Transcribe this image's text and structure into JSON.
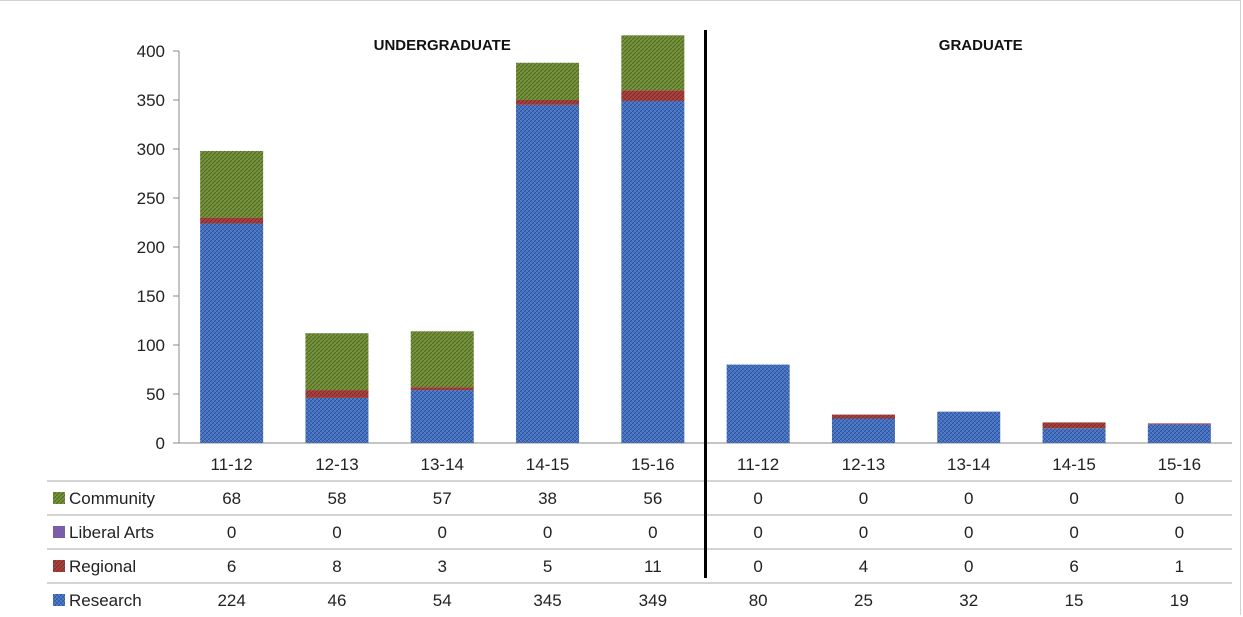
{
  "chart_data": {
    "type": "bar",
    "stacked": true,
    "groups": [
      {
        "title": "UNDERGRADUATE",
        "categories": [
          "11-12",
          "12-13",
          "13-14",
          "14-15",
          "15-16"
        ]
      },
      {
        "title": "GRADUATE",
        "categories": [
          "11-12",
          "12-13",
          "13-14",
          "14-15",
          "15-16"
        ]
      }
    ],
    "series": [
      {
        "name": "Research",
        "color": "#4472c4",
        "values": [
          224,
          46,
          54,
          345,
          349,
          80,
          25,
          32,
          15,
          19
        ]
      },
      {
        "name": "Regional",
        "color": "#a5403d",
        "values": [
          6,
          8,
          3,
          5,
          11,
          0,
          4,
          0,
          6,
          1
        ]
      },
      {
        "name": "Liberal Arts",
        "color": "#7b5ea7",
        "values": [
          0,
          0,
          0,
          0,
          0,
          0,
          0,
          0,
          0,
          0
        ]
      },
      {
        "name": "Community",
        "color": "#76923c",
        "values": [
          68,
          58,
          57,
          38,
          56,
          0,
          0,
          0,
          0,
          0
        ]
      }
    ],
    "table_row_order": [
      "Community",
      "Liberal Arts",
      "Regional",
      "Research"
    ],
    "y_ticks": [
      "0",
      "50",
      "100",
      "150",
      "200",
      "250",
      "300",
      "350",
      "400"
    ],
    "ylim": [
      0,
      400
    ],
    "legend": "data-table"
  }
}
